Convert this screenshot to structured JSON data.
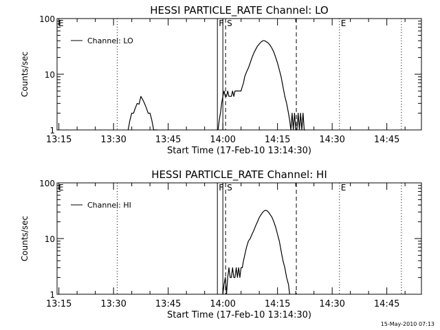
{
  "footer_timestamp": "15-May-2010 07:13",
  "chart_data": [
    {
      "type": "line",
      "title": "HESSI PARTICLE_RATE Channel: LO",
      "xlabel": "Start Time (17-Feb-10 13:14:30)",
      "ylabel": "Counts/sec",
      "yscale": "log",
      "ylim": [
        1,
        100
      ],
      "xlim": [
        "13:14:30",
        "14:54:30"
      ],
      "xticks": [
        "13:15",
        "13:30",
        "13:45",
        "14:00",
        "14:15",
        "14:30",
        "14:45"
      ],
      "yticks": [
        "1",
        "10",
        "100"
      ],
      "legend": {
        "position": "top-left",
        "entries": [
          "Channel: LO"
        ]
      },
      "markers": [
        {
          "label": "E",
          "time": "13:14:30",
          "style": "dotted"
        },
        {
          "label": "",
          "time": "13:31:00",
          "style": "dotted"
        },
        {
          "label": "F",
          "time": "13:58:30",
          "style": "solid"
        },
        {
          "label": "",
          "time": "14:00:00",
          "style": "solid"
        },
        {
          "label": "S",
          "time": "14:00:45",
          "style": "dashed"
        },
        {
          "label": "",
          "time": "14:20:10",
          "style": "dashed"
        },
        {
          "label": "E",
          "time": "14:32:00",
          "style": "dotted"
        },
        {
          "label": "",
          "time": "14:49:00",
          "style": "dotted"
        }
      ],
      "series": [
        {
          "name": "Channel: LO",
          "segments": [
            {
              "t": [
                "13:34:00",
                "13:34:30",
                "13:35:00",
                "13:35:30",
                "13:36:00",
                "13:36:30",
                "13:37:00",
                "13:37:30",
                "13:38:00",
                "13:38:30",
                "13:39:00",
                "13:39:30",
                "13:40:00",
                "13:40:30",
                "13:41:00",
                "13:41:30",
                "13:42:00"
              ],
              "v": [
                1.0,
                1.5,
                2.0,
                2.0,
                2.5,
                3.0,
                2.9,
                4.0,
                3.5,
                3.0,
                2.5,
                2.0,
                2.0,
                1.5,
                1.0,
                1.0,
                1.0
              ]
            },
            {
              "t": [
                "13:58:40",
                "13:59:00",
                "13:59:20",
                "13:59:40",
                "14:00:00",
                "14:00:20",
                "14:00:40",
                "14:01:00",
                "14:01:20",
                "14:01:40",
                "14:02:00",
                "14:02:20",
                "14:02:40",
                "14:03:00",
                "14:03:20",
                "14:03:40",
                "14:04:00",
                "14:04:20",
                "14:04:40",
                "14:05:00",
                "14:05:20",
                "14:05:40",
                "14:06:00",
                "14:06:30",
                "14:07:00",
                "14:07:30",
                "14:08:00",
                "14:08:30",
                "14:09:00",
                "14:09:30",
                "14:10:00",
                "14:10:30",
                "14:11:00",
                "14:11:30",
                "14:12:00",
                "14:12:30",
                "14:13:00",
                "14:13:30",
                "14:14:00",
                "14:14:30",
                "14:15:00",
                "14:15:30",
                "14:16:00",
                "14:16:30",
                "14:17:00",
                "14:17:30",
                "14:18:00",
                "14:18:20",
                "14:18:40",
                "14:19:00",
                "14:19:20",
                "14:19:40",
                "14:20:00",
                "14:20:20",
                "14:20:40",
                "14:21:00",
                "14:21:20",
                "14:21:40",
                "14:22:00",
                "14:22:20",
                "14:22:40"
              ],
              "v": [
                1.0,
                1.5,
                2.0,
                3.0,
                4.0,
                5.0,
                4.0,
                4.0,
                5.0,
                4.0,
                4.0,
                4.0,
                5.0,
                4.0,
                5.0,
                5.0,
                5.0,
                5.0,
                5.0,
                5.0,
                6.0,
                7.0,
                9.0,
                11.0,
                13.0,
                16.0,
                20.0,
                24.0,
                28.0,
                32.0,
                35.0,
                38.0,
                40.0,
                40.0,
                38.0,
                36.0,
                33.0,
                29.0,
                25.0,
                20.0,
                16.0,
                12.0,
                9.0,
                6.0,
                4.0,
                3.0,
                2.0,
                1.5,
                1.0,
                2.0,
                1.0,
                2.0,
                1.0,
                1.0,
                2.0,
                1.0,
                2.0,
                1.0,
                2.0,
                1.0,
                1.0
              ]
            }
          ]
        }
      ]
    },
    {
      "type": "line",
      "title": "HESSI PARTICLE_RATE Channel: HI",
      "xlabel": "Start Time (17-Feb-10 13:14:30)",
      "ylabel": "Counts/sec",
      "yscale": "log",
      "ylim": [
        1,
        100
      ],
      "xlim": [
        "13:14:30",
        "14:54:30"
      ],
      "xticks": [
        "13:15",
        "13:30",
        "13:45",
        "14:00",
        "14:15",
        "14:30",
        "14:45"
      ],
      "yticks": [
        "1",
        "10",
        "100"
      ],
      "legend": {
        "position": "top-left",
        "entries": [
          "Channel: HI"
        ]
      },
      "markers": [
        {
          "label": "E",
          "time": "13:14:30",
          "style": "dotted"
        },
        {
          "label": "",
          "time": "13:31:00",
          "style": "dotted"
        },
        {
          "label": "F",
          "time": "13:58:30",
          "style": "solid"
        },
        {
          "label": "",
          "time": "14:00:00",
          "style": "solid"
        },
        {
          "label": "S",
          "time": "14:00:45",
          "style": "dashed"
        },
        {
          "label": "",
          "time": "14:20:10",
          "style": "dashed"
        },
        {
          "label": "E",
          "time": "14:32:00",
          "style": "dotted"
        },
        {
          "label": "",
          "time": "14:49:00",
          "style": "dotted"
        }
      ],
      "series": [
        {
          "name": "Channel: HI",
          "segments": [
            {
              "t": [
                "14:00:00",
                "14:00:20",
                "14:00:40",
                "14:01:00",
                "14:01:20",
                "14:01:40",
                "14:02:00",
                "14:02:20",
                "14:02:40",
                "14:03:00",
                "14:03:20",
                "14:03:40",
                "14:04:00",
                "14:04:20",
                "14:04:40",
                "14:05:00",
                "14:05:20",
                "14:05:40",
                "14:06:00",
                "14:06:30",
                "14:07:00",
                "14:07:30",
                "14:08:00",
                "14:08:30",
                "14:09:00",
                "14:09:30",
                "14:10:00",
                "14:10:30",
                "14:11:00",
                "14:11:30",
                "14:12:00",
                "14:12:30",
                "14:13:00",
                "14:13:30",
                "14:14:00",
                "14:14:30",
                "14:15:00",
                "14:15:30",
                "14:16:00",
                "14:16:30",
                "14:17:00",
                "14:17:30",
                "14:18:00",
                "14:18:20"
              ],
              "v": [
                1.0,
                1.5,
                2.0,
                1.0,
                2.0,
                3.0,
                2.0,
                2.0,
                3.0,
                2.0,
                2.0,
                3.0,
                2.0,
                3.0,
                2.0,
                3.0,
                3.0,
                4.0,
                5.0,
                7.0,
                9.0,
                10.0,
                12.0,
                14.0,
                17.0,
                20.0,
                24.0,
                27.0,
                30.0,
                32.0,
                32.0,
                30.0,
                27.0,
                24.0,
                20.0,
                16.0,
                12.0,
                9.0,
                6.0,
                4.0,
                3.0,
                2.0,
                1.5,
                1.0
              ]
            }
          ]
        }
      ]
    }
  ]
}
